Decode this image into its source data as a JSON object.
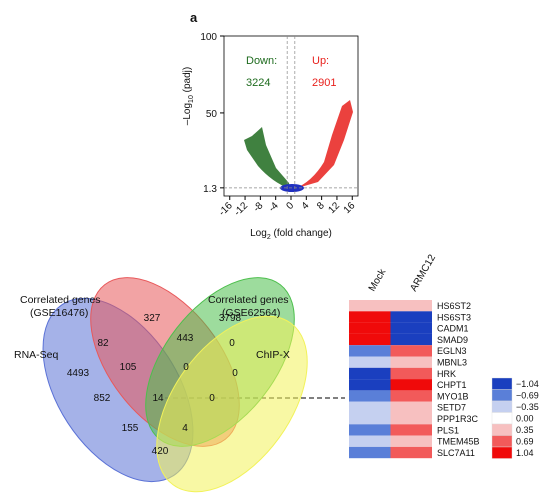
{
  "panel_label": "a",
  "chart_data": [
    {
      "type": "volcano",
      "x_label": {
        "text": "Log",
        "sub": "2",
        "rest": " (fold change)"
      },
      "y_label": {
        "text": "–Log",
        "sub": "10",
        "rest": " (padj)"
      },
      "xlim": [
        -17.5,
        17.5
      ],
      "ylim": [
        -4,
        100
      ],
      "xticks": [
        -16,
        -12,
        -8,
        -4,
        0,
        4,
        8,
        12,
        16
      ],
      "yticks": [
        1.3,
        50,
        100
      ],
      "thresholds": {
        "x": [
          -1,
          1
        ],
        "y": 1.3
      },
      "annotations": [
        {
          "label": "Down:",
          "count": "3224",
          "color": "#1e6b1e"
        },
        {
          "label": "Up:",
          "count": "2901",
          "color": "#e8201c"
        }
      ]
    },
    {
      "type": "heatmap",
      "columns": [
        "Mock",
        "ARMC12"
      ],
      "rows": [
        "HS6ST2",
        "HS6ST3",
        "CADM1",
        "SMAD9",
        "EGLN3",
        "MBNL3",
        "HRK",
        "CHPT1",
        "MYO1B",
        "SETD7",
        "PPP1R3C",
        "PLS1",
        "TMEM45B",
        "SLC7A11"
      ],
      "values": [
        [
          0.35,
          0.35
        ],
        [
          1.04,
          -1.04
        ],
        [
          1.04,
          -1.04
        ],
        [
          1.04,
          -1.04
        ],
        [
          -0.69,
          0.69
        ],
        [
          -0.35,
          0.35
        ],
        [
          -1.04,
          0.69
        ],
        [
          -1.04,
          1.04
        ],
        [
          -0.69,
          0.69
        ],
        [
          -0.35,
          0.35
        ],
        [
          -0.35,
          0.35
        ],
        [
          -0.69,
          0.69
        ],
        [
          -0.35,
          0.35
        ],
        [
          -0.69,
          0.69
        ]
      ],
      "legend": [
        {
          "value": -1.04,
          "label": "−1.04",
          "color": "#1a3fbf"
        },
        {
          "value": -0.69,
          "label": "−0.69",
          "color": "#5a7fd8"
        },
        {
          "value": -0.35,
          "label": "−0.35",
          "color": "#c5d0f0"
        },
        {
          "value": 0,
          "label": "0.00",
          "color": "#ffffff"
        },
        {
          "value": 0.35,
          "label": "0.35",
          "color": "#f7c0c0"
        },
        {
          "value": 0.69,
          "label": "0.69",
          "color": "#f25a5a"
        },
        {
          "value": 1.04,
          "label": "1.04",
          "color": "#f00a0a"
        }
      ]
    }
  ],
  "venn": {
    "sets": [
      {
        "name": [
          "Correlated genes",
          "(GSE16476)"
        ],
        "color": "#e8585a"
      },
      {
        "name": [
          "Correlated genes",
          "(GSE62564)"
        ],
        "color": "#4cbf4c"
      },
      {
        "name": [
          "RNA-Seq"
        ],
        "color": "#5b72d6"
      },
      {
        "name": [
          "ChIP-X"
        ],
        "color": "#f2f25a"
      }
    ],
    "counts": [
      "327",
      "3798",
      "82",
      "443",
      "0",
      "4493",
      "105",
      "0",
      "0",
      "852",
      "14",
      "0",
      "155",
      "4",
      "420"
    ]
  }
}
